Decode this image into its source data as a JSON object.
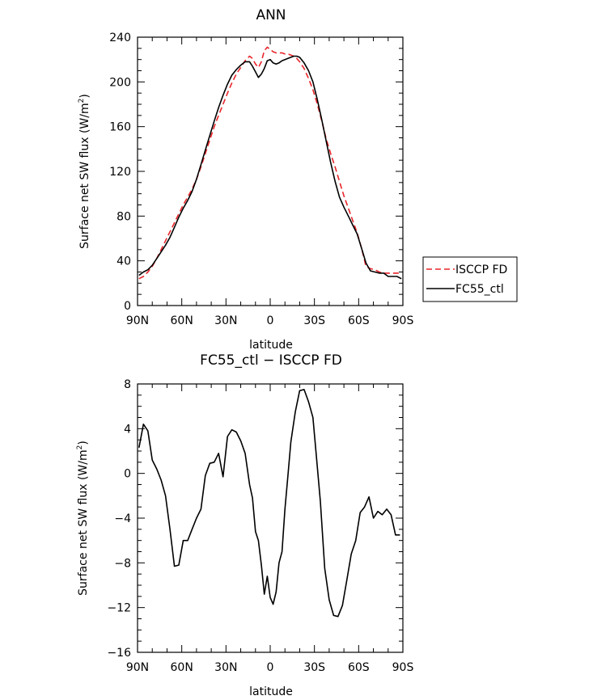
{
  "chart_data": [
    {
      "type": "line",
      "title": "ANN",
      "xlabel": "latitude",
      "ylabel": "Surface net SW flux (W/m²)",
      "ylabel_text": "Surface net SW flux (W/m",
      "ylabel_sup": "2",
      "ylabel_end": ")",
      "xlim": [
        90,
        -90
      ],
      "ylim": [
        0,
        240
      ],
      "x_ticks": [
        90,
        60,
        30,
        0,
        -30,
        -60,
        -90
      ],
      "x_tick_labels": [
        "90N",
        "60N",
        "30N",
        "0",
        "30S",
        "60S",
        "90S"
      ],
      "y_ticks": [
        0,
        40,
        80,
        120,
        160,
        200,
        240
      ],
      "y_tick_labels": [
        "0",
        "40",
        "80",
        "120",
        "160",
        "200",
        "240"
      ],
      "legend": "right",
      "series": [
        {
          "name": "ISCCP FD",
          "color": "#e8262b",
          "style": "dashed",
          "x": [
            89,
            86,
            83,
            80,
            77,
            74,
            71,
            68,
            65,
            62,
            59,
            56,
            53,
            50,
            47,
            44,
            41,
            38,
            35,
            32,
            29,
            26,
            23,
            20,
            17,
            14,
            12,
            10,
            8,
            6,
            4,
            2,
            0,
            -2,
            -4,
            -6,
            -8,
            -10,
            -12,
            -14,
            -16,
            -18,
            -20,
            -23,
            -26,
            -29,
            -32,
            -35,
            -38,
            -41,
            -44,
            -47,
            -50,
            -53,
            -56,
            -59,
            -62,
            -65,
            -68,
            -71,
            -74,
            -77,
            -80,
            -83,
            -86,
            -89
          ],
          "y": [
            24,
            26,
            30,
            35,
            42,
            50,
            58,
            66,
            74,
            82,
            90,
            97,
            104,
            113,
            124,
            136,
            148,
            160,
            170,
            180,
            190,
            199,
            207,
            213,
            219,
            223,
            221,
            216,
            213,
            218,
            228,
            231,
            229,
            227,
            226,
            226,
            226,
            225,
            225,
            224,
            223,
            221,
            218,
            212,
            203,
            193,
            180,
            165,
            149,
            136,
            124,
            111,
            98,
            87,
            76,
            65,
            51,
            35,
            33,
            32,
            30,
            29,
            29,
            29,
            29,
            29
          ]
        },
        {
          "name": "FC55_ctl",
          "color": "#000000",
          "style": "solid",
          "x": [
            89,
            86,
            83,
            80,
            77,
            74,
            71,
            68,
            65,
            62,
            59,
            56,
            53,
            50,
            47,
            44,
            41,
            38,
            35,
            32,
            29,
            26,
            23,
            20,
            17,
            14,
            12,
            10,
            8,
            6,
            4,
            2,
            0,
            -2,
            -4,
            -6,
            -8,
            -10,
            -12,
            -14,
            -16,
            -18,
            -20,
            -23,
            -26,
            -29,
            -32,
            -35,
            -38,
            -41,
            -44,
            -47,
            -50,
            -53,
            -56,
            -59,
            -62,
            -65,
            -68,
            -71,
            -74,
            -77,
            -80,
            -83,
            -86,
            -89
          ],
          "y": [
            27,
            30,
            32,
            36,
            42,
            48,
            54,
            61,
            70,
            79,
            87,
            94,
            102,
            113,
            126,
            139,
            152,
            165,
            177,
            188,
            198,
            206,
            211,
            215,
            218,
            218,
            214,
            209,
            204,
            207,
            212,
            219,
            220,
            217,
            216,
            217,
            219,
            220,
            221,
            222,
            223,
            223,
            222,
            217,
            210,
            200,
            184,
            166,
            147,
            128,
            111,
            97,
            88,
            80,
            72,
            64,
            51,
            38,
            31,
            30,
            29,
            29,
            26,
            26,
            26,
            24
          ]
        }
      ]
    },
    {
      "type": "line",
      "title": "FC55_ctl − ISCCP FD",
      "xlabel": "latitude",
      "ylabel": "Surface net SW flux (W/m²)",
      "ylabel_text": "Surface net SW flux (W/m",
      "ylabel_sup": "2",
      "ylabel_end": ")",
      "xlim": [
        90,
        -90
      ],
      "ylim": [
        -16,
        8
      ],
      "x_ticks": [
        90,
        60,
        30,
        0,
        -30,
        -60,
        -90
      ],
      "x_tick_labels": [
        "90N",
        "60N",
        "30N",
        "0",
        "30S",
        "60S",
        "90S"
      ],
      "y_ticks": [
        -16,
        -12,
        -8,
        -4,
        0,
        4,
        8
      ],
      "y_tick_labels": [
        "−16",
        "−12",
        "−8",
        "−4",
        "0",
        "4",
        "8"
      ],
      "series": [
        {
          "color": "#000000",
          "style": "solid",
          "x": [
            89,
            86,
            83,
            80,
            77,
            74,
            71,
            68,
            65,
            62,
            59,
            56,
            53,
            50,
            47,
            44,
            41,
            38,
            35,
            32,
            29,
            26,
            23,
            20,
            17,
            14,
            12,
            10,
            8,
            6,
            4,
            2,
            0,
            -2,
            -4,
            -6,
            -8,
            -10,
            -12,
            -14,
            -17,
            -20,
            -23,
            -26,
            -29,
            -31,
            -34,
            -37,
            -40,
            -43,
            -46,
            -49,
            -52,
            -55,
            -58,
            -61,
            -64,
            -67,
            -70,
            -73,
            -76,
            -79,
            -82,
            -85,
            -88
          ],
          "y": [
            2.3,
            4.4,
            3.8,
            1.2,
            0.4,
            -0.6,
            -2.0,
            -5.0,
            -8.3,
            -8.2,
            -6.0,
            -6.0,
            -5.0,
            -4.0,
            -3.2,
            -0.2,
            0.9,
            1.0,
            1.8,
            -0.3,
            3.3,
            3.9,
            3.7,
            2.9,
            1.8,
            -1.0,
            -2.2,
            -5.2,
            -6.0,
            -8.2,
            -10.8,
            -9.2,
            -11.1,
            -11.7,
            -10.6,
            -8.0,
            -7.0,
            -3.2,
            -0.2,
            2.8,
            5.5,
            7.4,
            7.5,
            6.4,
            5.0,
            2.0,
            -2.5,
            -8.5,
            -11.3,
            -12.7,
            -12.8,
            -11.8,
            -9.5,
            -7.2,
            -6.0,
            -3.5,
            -3.0,
            -2.1,
            -4.0,
            -3.4,
            -3.7,
            -3.2,
            -3.7,
            -5.5,
            -5.5
          ]
        }
      ]
    }
  ]
}
